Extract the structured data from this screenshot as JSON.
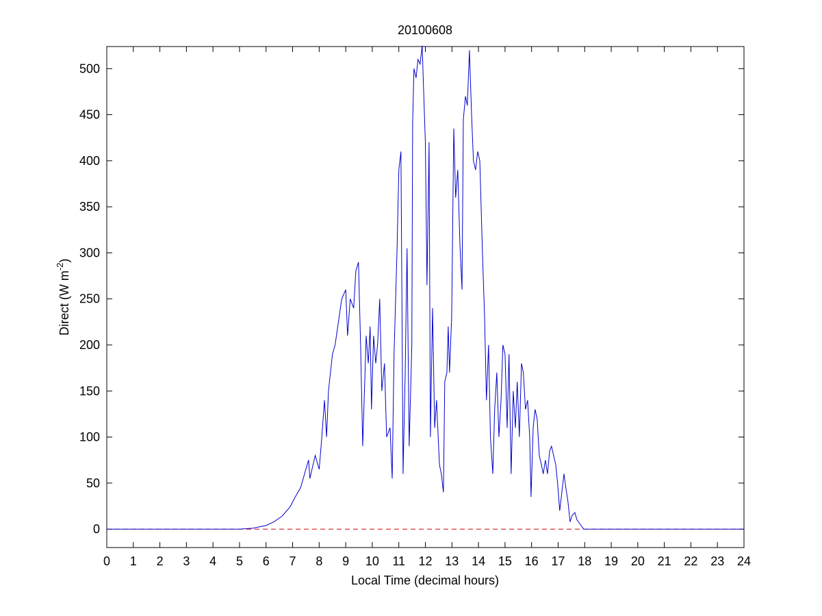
{
  "chart_data": {
    "type": "line",
    "title": "20100608",
    "xlabel": "Local Time (decimal hours)",
    "ylabel": {
      "text": "Direct (W m",
      "superscript": "-2",
      "suffix": ")"
    },
    "xlim": [
      0,
      24
    ],
    "ylim": [
      -20,
      524
    ],
    "xticks": [
      0,
      1,
      2,
      3,
      4,
      5,
      6,
      7,
      8,
      9,
      10,
      11,
      12,
      13,
      14,
      15,
      16,
      17,
      18,
      19,
      20,
      21,
      22,
      23,
      24
    ],
    "yticks": [
      0,
      50,
      100,
      150,
      200,
      250,
      300,
      350,
      400,
      450,
      500
    ],
    "zero_line": {
      "value": 0,
      "color": "#cc0000"
    },
    "series": [
      {
        "color": "#0000cc",
        "x": [
          0,
          5.0,
          5.5,
          6.0,
          6.3,
          6.6,
          6.9,
          7.1,
          7.3,
          7.5,
          7.6,
          7.65,
          7.85,
          8.0,
          8.1,
          8.2,
          8.28,
          8.35,
          8.5,
          8.6,
          8.75,
          8.85,
          9.0,
          9.07,
          9.17,
          9.3,
          9.38,
          9.48,
          9.56,
          9.64,
          9.77,
          9.85,
          9.92,
          9.97,
          10.05,
          10.13,
          10.2,
          10.28,
          10.36,
          10.46,
          10.54,
          10.67,
          10.75,
          10.82,
          10.93,
          11.0,
          11.08,
          11.16,
          11.24,
          11.31,
          11.39,
          11.49,
          11.52,
          11.57,
          11.65,
          11.72,
          11.8,
          11.88,
          11.93,
          12.0,
          12.06,
          12.14,
          12.19,
          12.27,
          12.35,
          12.42,
          12.53,
          12.6,
          12.68,
          12.73,
          12.81,
          12.86,
          12.91,
          12.99,
          13.07,
          13.14,
          13.22,
          13.3,
          13.38,
          13.43,
          13.51,
          13.58,
          13.66,
          13.74,
          13.81,
          13.89,
          13.97,
          14.05,
          14.15,
          14.23,
          14.3,
          14.38,
          14.45,
          14.54,
          14.61,
          14.69,
          14.77,
          14.85,
          14.92,
          15.0,
          15.08,
          15.15,
          15.23,
          15.31,
          15.39,
          15.46,
          15.54,
          15.62,
          15.69,
          15.77,
          15.85,
          15.93,
          15.98,
          16.06,
          16.13,
          16.21,
          16.29,
          16.37,
          16.44,
          16.52,
          16.6,
          16.68,
          16.75,
          16.83,
          16.91,
          16.98,
          17.06,
          17.14,
          17.22,
          17.29,
          17.37,
          17.45,
          17.53,
          17.63,
          17.71,
          17.84,
          17.96,
          24
        ],
        "values": [
          0,
          0,
          1,
          4,
          8,
          14,
          24,
          35,
          45,
          65,
          75,
          55,
          80,
          65,
          100,
          140,
          100,
          150,
          190,
          200,
          230,
          250,
          260,
          210,
          250,
          240,
          280,
          290,
          200,
          90,
          210,
          180,
          220,
          130,
          210,
          180,
          200,
          250,
          150,
          180,
          100,
          110,
          55,
          190,
          300,
          390,
          410,
          60,
          170,
          305,
          90,
          200,
          440,
          500,
          490,
          510,
          505,
          525,
          480,
          420,
          265,
          420,
          100,
          240,
          110,
          140,
          70,
          60,
          40,
          160,
          170,
          220,
          170,
          230,
          435,
          360,
          390,
          310,
          260,
          445,
          470,
          460,
          520,
          450,
          400,
          390,
          410,
          400,
          300,
          230,
          140,
          200,
          100,
          60,
          130,
          170,
          100,
          140,
          200,
          190,
          110,
          190,
          60,
          150,
          110,
          160,
          100,
          180,
          170,
          130,
          140,
          100,
          35,
          110,
          130,
          120,
          80,
          70,
          60,
          75,
          60,
          85,
          90,
          80,
          70,
          50,
          20,
          40,
          60,
          45,
          30,
          8,
          15,
          18,
          10,
          5,
          0,
          0
        ]
      }
    ]
  }
}
